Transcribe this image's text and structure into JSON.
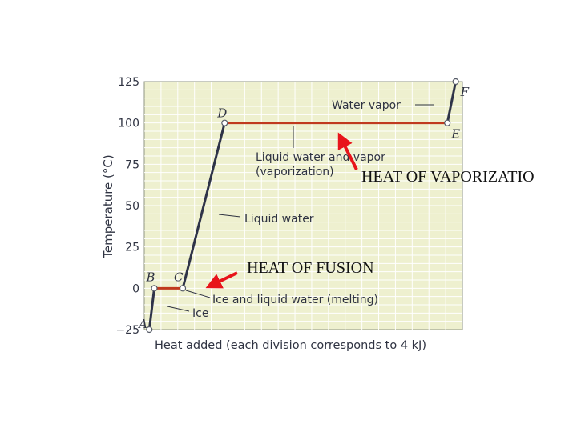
{
  "chart_data": {
    "type": "line",
    "title": "",
    "xlabel": "Heat added (each division corresponds to 4 kJ)",
    "ylabel": "Temperature (°C)",
    "xlim": [
      0,
      19
    ],
    "ylim": [
      -25,
      125
    ],
    "yticks": [
      "125",
      "100",
      "75",
      "50",
      "25",
      "0",
      "−25"
    ],
    "grid": true,
    "points": [
      {
        "label": "A",
        "x": 0.3,
        "y": -25
      },
      {
        "label": "B",
        "x": 0.6,
        "y": 0
      },
      {
        "label": "C",
        "x": 2.3,
        "y": 0
      },
      {
        "label": "D",
        "x": 4.8,
        "y": 100
      },
      {
        "label": "E",
        "x": 18.1,
        "y": 100
      },
      {
        "label": "F",
        "x": 18.6,
        "y": 125
      }
    ],
    "segments": [
      {
        "from": "A",
        "to": "B",
        "phase": "Ice",
        "color": "#2e3348"
      },
      {
        "from": "B",
        "to": "C",
        "phase": "Ice and liquid water (melting)",
        "color": "#c0391e"
      },
      {
        "from": "C",
        "to": "D",
        "phase": "Liquid water",
        "color": "#2e3348"
      },
      {
        "from": "D",
        "to": "E",
        "phase": "Liquid water and vapor (vaporization)",
        "color": "#c0391e"
      },
      {
        "from": "E",
        "to": "F",
        "phase": "Water vapor",
        "color": "#2e3348"
      }
    ],
    "annotations": {
      "water_vapor": "Water vapor",
      "liquid_vapor_1": "Liquid water and vapor",
      "liquid_vapor_2": "(vaporization)",
      "liquid_water": "Liquid water",
      "ice_liquid": "Ice and liquid water (melting)",
      "ice": "Ice"
    }
  },
  "overlays": {
    "heat_of_vaporization": "HEAT OF VAPORIZATIO",
    "heat_of_fusion": "HEAT OF FUSION",
    "arrow_color": "#e8141b"
  },
  "colors": {
    "plot_background": "#eef0cf",
    "grid": "#ffffff",
    "phase_change_line": "#c0391e",
    "heating_line": "#2e3348"
  }
}
